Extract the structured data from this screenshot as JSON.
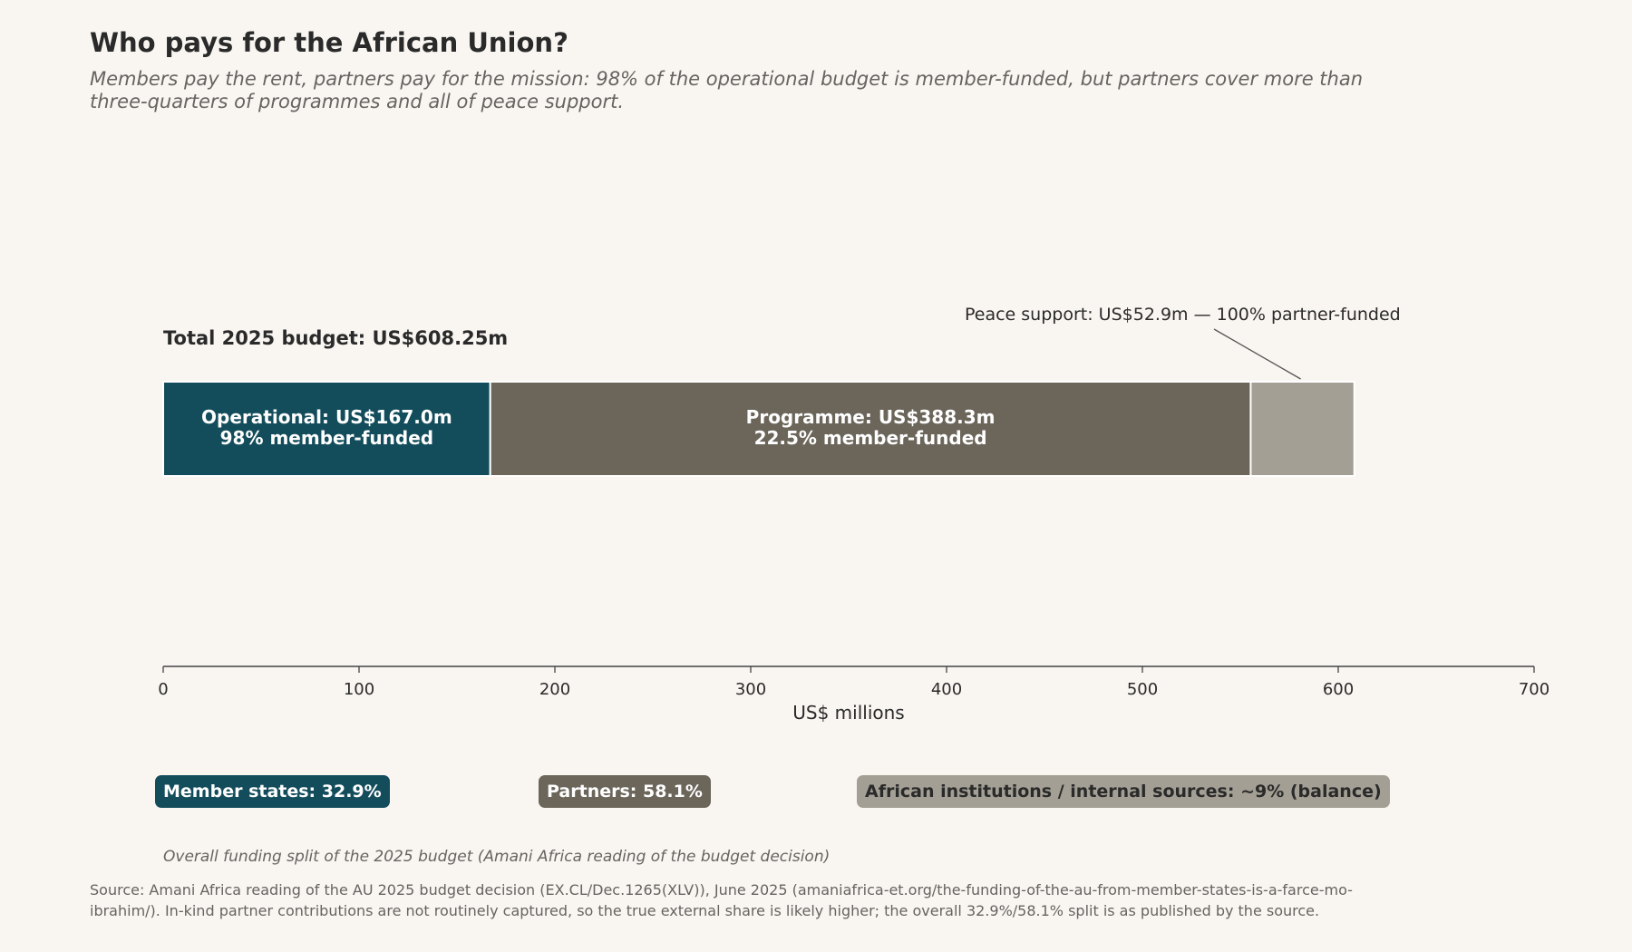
{
  "title": "Who pays for the African Union?",
  "subtitle": "Members pay the rent, partners pay for the mission: 98% of the operational budget is member-funded, but partners cover more than three-quarters of programmes and all of peace support.",
  "colors": {
    "operational": "#134d5c",
    "programme": "#6b655a",
    "peace_support": "#a39f94",
    "background": "#f9f6f2"
  },
  "chart_data": {
    "type": "bar",
    "orientation": "horizontal-stacked",
    "total_label": "Total 2025 budget: US$608.25m",
    "xlabel": "US$ millions",
    "xlim": [
      0,
      700
    ],
    "xticks": [
      "0",
      "100",
      "200",
      "300",
      "400",
      "500",
      "600",
      "700"
    ],
    "grid": false,
    "segments": [
      {
        "name": "Operational",
        "value": 167.0,
        "label_line1": "Operational: US$167.0m",
        "label_line2": "98% member-funded",
        "color": "#134d5c"
      },
      {
        "name": "Programme",
        "value": 388.3,
        "label_line1": "Programme: US$388.3m",
        "label_line2": "22.5% member-funded",
        "color": "#6b655a"
      },
      {
        "name": "Peace support",
        "value": 52.9,
        "label_line1": "",
        "label_line2": "",
        "color": "#a39f94"
      }
    ],
    "annotation": "Peace support: US$52.9m — 100% partner-funded"
  },
  "legend": [
    {
      "text": "Member states: 32.9%",
      "bg": "#134d5c",
      "fg": "#ffffff"
    },
    {
      "text": "Partners: 58.1%",
      "bg": "#6b655a",
      "fg": "#ffffff"
    },
    {
      "text": "African institutions / internal sources: ~9% (balance)",
      "bg": "#a39f94",
      "fg": "#2a2a2a"
    }
  ],
  "caption": "Overall funding split of the 2025 budget (Amani Africa reading of the budget decision)",
  "source": "Source: Amani Africa reading of the AU 2025 budget decision (EX.CL/Dec.1265(XLV)), June 2025 (amaniafrica-et.org/the-funding-of-the-au-from-member-states-is-a-farce-mo-ibrahim/). In-kind partner contributions are not routinely captured, so the true external share is likely higher; the overall 32.9%/58.1% split is as published by the source."
}
